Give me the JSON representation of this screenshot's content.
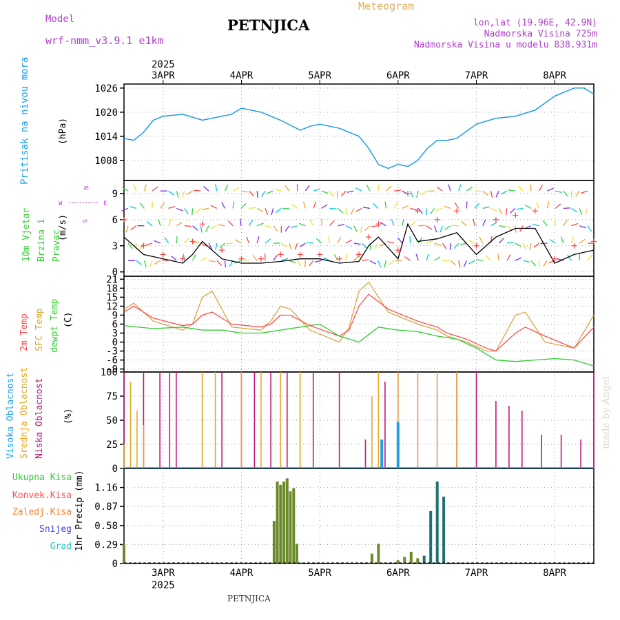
{
  "header": {
    "model_label": "Model",
    "model_name": "wrf-nmm_v3.9.1 e1km",
    "station": "PETNJICA",
    "product": "Meteogram",
    "location": "lon,lat (19.96E, 42.9N)",
    "elevation": "Nadmorska Visina 725m",
    "model_elevation": "Nadmorska Visina u modelu 838.931m",
    "watermark": "made by Angel",
    "footer_station": "PETNJICA"
  },
  "colors": {
    "pressure": "#1e9be6",
    "wind_speed": "#000000",
    "gust": "#ff4040",
    "t2m": "#ff4d4d",
    "sfc": "#d9a441",
    "dew": "#2ecc2e",
    "high_cloud": "#1ea0e6",
    "mid_cloud": "#e3a827",
    "low_cloud": "#c4157a",
    "total_precip": "#2ecc2e",
    "conv_precip": "#ff4d4d",
    "strat_precip": "#ff7f27",
    "snow": "#4040e0",
    "graupel": "#20c0c0",
    "header_purple": "#b040c8",
    "header_gold": "#e0b060"
  },
  "chart_data": [
    {
      "type": "line",
      "panel": "pressure",
      "ylabel_rotated": "Pritisak na nivou mora",
      "unit": "(hPa)",
      "yticks": [
        1008,
        1014,
        1020,
        1026
      ],
      "ylim": [
        1003,
        1027
      ],
      "top_axis_year": "2025",
      "date_labels": [
        "3APR",
        "4APR",
        "5APR",
        "6APR",
        "7APR",
        "8APR"
      ],
      "x_start": "2025-04-02 12:00",
      "x_end": "2025-04-08 12:00",
      "grid": true,
      "series": [
        {
          "x": [
            "2025-04-02 12:00",
            "2025-04-02 15:00",
            "2025-04-02 18:00",
            "2025-04-02 21:00",
            "2025-04-03 00:00",
            "2025-04-03 06:00",
            "2025-04-03 12:00",
            "2025-04-03 15:00",
            "2025-04-03 21:00",
            "2025-04-04 00:00",
            "2025-04-04 06:00",
            "2025-04-04 12:00",
            "2025-04-04 18:00",
            "2025-04-04 21:00",
            "2025-04-05 00:00",
            "2025-04-05 06:00",
            "2025-04-05 12:00",
            "2025-04-05 15:00",
            "2025-04-05 18:00",
            "2025-04-05 21:00",
            "2025-04-06 00:00",
            "2025-04-06 03:00",
            "2025-04-06 06:00",
            "2025-04-06 09:00",
            "2025-04-06 12:00",
            "2025-04-06 15:00",
            "2025-04-06 18:00",
            "2025-04-07 00:00",
            "2025-04-07 06:00",
            "2025-04-07 12:00",
            "2025-04-07 18:00",
            "2025-04-08 00:00",
            "2025-04-08 06:00",
            "2025-04-08 09:00",
            "2025-04-08 12:00"
          ],
          "y": [
            1013.5,
            1013,
            1015,
            1018,
            1019,
            1019.5,
            1018,
            1018.5,
            1019.5,
            1021,
            1020,
            1018,
            1015.5,
            1016.5,
            1017,
            1016,
            1014,
            1011,
            1007,
            1006,
            1007,
            1006.5,
            1008,
            1011,
            1013,
            1013,
            1013.5,
            1017,
            1018.5,
            1019,
            1020.5,
            1024,
            1026,
            1026,
            1024.5
          ]
        }
      ]
    },
    {
      "type": "line",
      "panel": "wind",
      "ylabel_rotated": "10m Vjetar Brzina i Pravac",
      "unit": "(m/s)",
      "compass": {
        "n": "N",
        "s": "S",
        "w": "W",
        "e": "E"
      },
      "yticks": [
        0,
        3,
        6,
        9
      ],
      "ylim": [
        -0.5,
        10.5
      ],
      "series": [
        {
          "x": [
            "2025-04-02 12:00",
            "2025-04-02 18:00",
            "2025-04-03 00:00",
            "2025-04-03 06:00",
            "2025-04-03 09:00",
            "2025-04-03 12:00",
            "2025-04-03 18:00",
            "2025-04-04 00:00",
            "2025-04-04 06:00",
            "2025-04-04 12:00",
            "2025-04-04 18:00",
            "2025-04-05 00:00",
            "2025-04-05 06:00",
            "2025-04-05 12:00",
            "2025-04-05 15:00",
            "2025-04-05 18:00",
            "2025-04-06 00:00",
            "2025-04-06 03:00",
            "2025-04-06 06:00",
            "2025-04-06 12:00",
            "2025-04-06 18:00",
            "2025-04-07 00:00",
            "2025-04-07 06:00",
            "2025-04-07 12:00",
            "2025-04-07 18:00",
            "2025-04-08 00:00",
            "2025-04-08 06:00",
            "2025-04-08 12:00"
          ],
          "y": [
            4,
            2,
            1.5,
            1,
            2,
            3.5,
            1.5,
            1,
            1,
            1.2,
            1.5,
            1.5,
            1,
            1.2,
            3,
            4,
            1.5,
            5.5,
            3.5,
            3.8,
            4.5,
            2,
            4,
            5,
            5,
            1,
            2,
            2.5
          ]
        },
        {
          "x": [
            "2025-04-02 12:00",
            "2025-04-02 18:00",
            "2025-04-03 00:00",
            "2025-04-03 06:00",
            "2025-04-03 09:00",
            "2025-04-03 12:00",
            "2025-04-03 18:00",
            "2025-04-04 00:00",
            "2025-04-04 06:00",
            "2025-04-04 12:00",
            "2025-04-04 18:00",
            "2025-04-05 00:00",
            "2025-04-05 06:00",
            "2025-04-05 12:00",
            "2025-04-05 15:00",
            "2025-04-05 18:00",
            "2025-04-06 00:00",
            "2025-04-06 03:00",
            "2025-04-06 06:00",
            "2025-04-06 12:00",
            "2025-04-06 18:00",
            "2025-04-07 00:00",
            "2025-04-07 06:00",
            "2025-04-07 12:00",
            "2025-04-07 18:00",
            "2025-04-08 00:00",
            "2025-04-08 06:00",
            "2025-04-08 12:00"
          ],
          "y": [
            6,
            3,
            2,
            1.5,
            3.5,
            5.5,
            2.5,
            1.5,
            1.5,
            2,
            2,
            2,
            1.5,
            2,
            4,
            5.5,
            2.5,
            9,
            7,
            6,
            7,
            3,
            6,
            6.5,
            7,
            1.5,
            3,
            3.5
          ]
        }
      ]
    },
    {
      "type": "line",
      "panel": "temperature",
      "ylabel_rotated": [
        "2m Temp",
        "SFC Temp",
        "dewpt Temp"
      ],
      "unit": "(C)",
      "yticks": [
        -9,
        -6,
        -3,
        0,
        3,
        6,
        9,
        12,
        15,
        18,
        21
      ],
      "ylim": [
        -10,
        22
      ],
      "series": [
        {
          "x": [
            "2025-04-02 12:00",
            "2025-04-02 15:00",
            "2025-04-02 21:00",
            "2025-04-03 06:00",
            "2025-04-03 09:00",
            "2025-04-03 12:00",
            "2025-04-03 15:00",
            "2025-04-03 21:00",
            "2025-04-04 06:00",
            "2025-04-04 09:00",
            "2025-04-04 12:00",
            "2025-04-04 15:00",
            "2025-04-04 21:00",
            "2025-04-05 06:00",
            "2025-04-05 09:00",
            "2025-04-05 12:00",
            "2025-04-05 15:00",
            "2025-04-05 21:00",
            "2025-04-06 06:00",
            "2025-04-06 12:00",
            "2025-04-06 15:00",
            "2025-04-06 21:00",
            "2025-04-07 03:00",
            "2025-04-07 06:00",
            "2025-04-07 12:00",
            "2025-04-07 15:00",
            "2025-04-07 21:00",
            "2025-04-08 06:00",
            "2025-04-08 12:00"
          ],
          "y": [
            10,
            12,
            8,
            5.5,
            6,
            9,
            10,
            6,
            5,
            6,
            9,
            9,
            5.5,
            2,
            4,
            12,
            16,
            11,
            7,
            5,
            3,
            1,
            -2,
            -3,
            3,
            5,
            2,
            -2,
            5
          ]
        },
        {
          "x": [
            "2025-04-02 12:00",
            "2025-04-02 15:00",
            "2025-04-02 21:00",
            "2025-04-03 06:00",
            "2025-04-03 09:00",
            "2025-04-03 12:00",
            "2025-04-03 15:00",
            "2025-04-03 21:00",
            "2025-04-04 06:00",
            "2025-04-04 09:00",
            "2025-04-04 12:00",
            "2025-04-04 15:00",
            "2025-04-04 21:00",
            "2025-04-05 06:00",
            "2025-04-05 09:00",
            "2025-04-05 12:00",
            "2025-04-05 15:00",
            "2025-04-05 21:00",
            "2025-04-06 06:00",
            "2025-04-06 12:00",
            "2025-04-06 15:00",
            "2025-04-06 21:00",
            "2025-04-07 03:00",
            "2025-04-07 06:00",
            "2025-04-07 12:00",
            "2025-04-07 15:00",
            "2025-04-07 21:00",
            "2025-04-08 06:00",
            "2025-04-08 12:00"
          ],
          "y": [
            11,
            13,
            7,
            4,
            6,
            15,
            17,
            5,
            4,
            7,
            12,
            11,
            4,
            0,
            5,
            17,
            20,
            10,
            6,
            4,
            2,
            0,
            -3,
            -3,
            9,
            10,
            0,
            -2,
            9
          ]
        },
        {
          "x": [
            "2025-04-02 12:00",
            "2025-04-02 21:00",
            "2025-04-03 06:00",
            "2025-04-03 12:00",
            "2025-04-03 18:00",
            "2025-04-04 00:00",
            "2025-04-04 06:00",
            "2025-04-04 12:00",
            "2025-04-04 18:00",
            "2025-04-05 00:00",
            "2025-04-05 06:00",
            "2025-04-05 12:00",
            "2025-04-05 18:00",
            "2025-04-06 00:00",
            "2025-04-06 06:00",
            "2025-04-06 12:00",
            "2025-04-06 18:00",
            "2025-04-07 00:00",
            "2025-04-07 06:00",
            "2025-04-07 12:00",
            "2025-04-07 18:00",
            "2025-04-08 00:00",
            "2025-04-08 06:00",
            "2025-04-08 12:00"
          ],
          "y": [
            5.5,
            4.5,
            5,
            4,
            4,
            3,
            3,
            4,
            5,
            6,
            2,
            0,
            5,
            4,
            3.5,
            2,
            1,
            -2,
            -6,
            -6.5,
            -6,
            -5.5,
            -6,
            -8
          ]
        }
      ]
    },
    {
      "type": "bar",
      "panel": "clouds",
      "ylabel_rotated": [
        "Visoka Oblacnost",
        "Srednja Oblacnost",
        "Niska Oblacnost"
      ],
      "unit": "(%)",
      "yticks": [
        0,
        25,
        50,
        75,
        100
      ],
      "ylim": [
        0,
        100
      ],
      "series": [
        {
          "name": "Niska Oblacnost",
          "x": [
            "2025-04-02 12:00",
            "2025-04-02 18:00",
            "2025-04-02 23:00",
            "2025-04-03 02:00",
            "2025-04-03 04:00",
            "2025-04-03 12:00",
            "2025-04-03 18:00",
            "2025-04-04 00:00",
            "2025-04-04 04:00",
            "2025-04-04 09:00",
            "2025-04-04 14:00",
            "2025-04-04 18:00",
            "2025-04-04 22:00",
            "2025-04-05 06:00",
            "2025-04-05 14:00",
            "2025-04-05 20:00",
            "2025-04-06 00:00",
            "2025-04-06 06:00",
            "2025-04-06 12:00",
            "2025-04-06 18:00",
            "2025-04-07 00:00",
            "2025-04-07 06:00",
            "2025-04-07 10:00",
            "2025-04-07 14:00",
            "2025-04-07 20:00",
            "2025-04-08 02:00",
            "2025-04-08 08:00",
            "2025-04-08 12:00"
          ],
          "values": [
            100,
            100,
            100,
            100,
            100,
            100,
            100,
            100,
            100,
            100,
            100,
            100,
            100,
            100,
            30,
            90,
            100,
            100,
            100,
            100,
            100,
            70,
            65,
            60,
            35,
            35,
            30,
            100
          ]
        },
        {
          "name": "Srednja Oblacnost",
          "x": [
            "2025-04-02 12:00",
            "2025-04-02 14:00",
            "2025-04-02 16:00",
            "2025-04-02 18:00",
            "2025-04-03 12:00",
            "2025-04-03 16:00",
            "2025-04-04 00:00",
            "2025-04-04 06:00",
            "2025-04-04 12:00",
            "2025-04-04 18:00",
            "2025-04-05 16:00",
            "2025-04-05 18:00",
            "2025-04-06 00:00",
            "2025-04-06 06:00",
            "2025-04-06 12:00",
            "2025-04-06 18:00"
          ],
          "values": [
            25,
            90,
            60,
            45,
            100,
            100,
            100,
            100,
            100,
            100,
            75,
            100,
            100,
            100,
            100,
            100
          ]
        },
        {
          "name": "Visoka Oblacnost",
          "x": [
            "2025-04-05 19:00",
            "2025-04-06 00:00"
          ],
          "values": [
            30,
            48
          ]
        }
      ]
    },
    {
      "type": "bar",
      "panel": "precip",
      "ylabel_rotated": "1hr Precip (mm)",
      "legend": [
        "Ukupna Kisa",
        "Konvek.Kisa",
        "Zaledj.Kisa",
        "Snijeg",
        "Grad"
      ],
      "yticks": [
        0,
        0.29,
        0.58,
        0.87,
        1.16
      ],
      "ylim": [
        0,
        1.45
      ],
      "bottom_date_labels": [
        "3APR",
        "4APR",
        "5APR",
        "6APR",
        "7APR",
        "8APR"
      ],
      "bottom_year": "2025",
      "series": [
        {
          "name": "Ukupna Kisa",
          "x": [
            "2025-04-02 12:00",
            "2025-04-04 10:00",
            "2025-04-04 11:00",
            "2025-04-04 12:00",
            "2025-04-04 13:00",
            "2025-04-04 14:00",
            "2025-04-04 15:00",
            "2025-04-04 16:00",
            "2025-04-04 17:00",
            "2025-04-05 16:00",
            "2025-04-05 18:00",
            "2025-04-06 00:00",
            "2025-04-06 02:00",
            "2025-04-06 04:00",
            "2025-04-06 06:00",
            "2025-04-06 08:00",
            "2025-04-06 10:00",
            "2025-04-06 12:00",
            "2025-04-06 14:00"
          ],
          "values": [
            0.3,
            0.65,
            1.25,
            1.2,
            1.25,
            1.3,
            1.1,
            1.15,
            0.3,
            0.15,
            0.3,
            0.05,
            0.1,
            0.18,
            0.08,
            0.12,
            0.8,
            1.25,
            1.02
          ]
        }
      ]
    }
  ]
}
